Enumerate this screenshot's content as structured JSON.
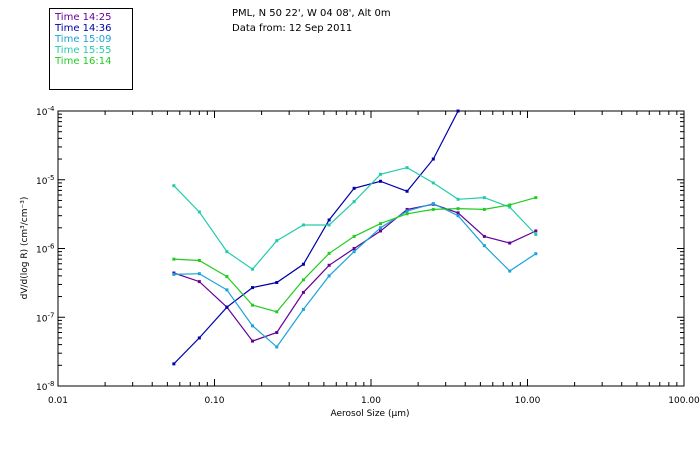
{
  "header": {
    "title": "PML, N 50 22', W 04 08', Alt 0m",
    "subtitle": "Data from: 12 Sep 2011"
  },
  "chart_data": {
    "type": "line",
    "xlabel": "Aerosol Size (µm)",
    "ylabel": "dV/d(log R) (cm³/cm⁻³)",
    "xscale": "log",
    "yscale": "log",
    "xlim": [
      0.01,
      100
    ],
    "ylim": [
      1e-08,
      0.0001
    ],
    "x_tick_labels": [
      "0.01",
      "0.10",
      "1.00",
      "10.00",
      "100.00"
    ],
    "y_tick_labels": [
      {
        "base": "10",
        "exp": "-8"
      },
      {
        "base": "10",
        "exp": "-7"
      },
      {
        "base": "10",
        "exp": "-6"
      },
      {
        "base": "10",
        "exp": "-5"
      },
      {
        "base": "10",
        "exp": "-4"
      }
    ],
    "legend_position": "top-left, outside plot",
    "series": [
      {
        "name": "Time 14:25",
        "color": "#660099",
        "x": [
          0.055,
          0.08,
          0.12,
          0.175,
          0.25,
          0.37,
          0.54,
          0.78,
          1.15,
          1.7,
          2.5,
          3.6,
          5.3,
          7.7,
          11.3
        ],
        "y": [
          4.4e-07,
          3.3e-07,
          1.4e-07,
          4.5e-08,
          6e-08,
          2.3e-07,
          5.7e-07,
          1e-06,
          1.8e-06,
          3.7e-06,
          4.4e-06,
          3.3e-06,
          1.5e-06,
          1.2e-06,
          1.8e-06
        ]
      },
      {
        "name": "Time 14:36",
        "color": "#0000aa",
        "x": [
          0.055,
          0.08,
          0.12,
          0.175,
          0.25,
          0.37,
          0.54,
          0.78,
          1.15,
          1.7,
          2.5,
          3.6
        ],
        "y": [
          2.1e-08,
          5e-08,
          1.4e-07,
          2.7e-07,
          3.2e-07,
          5.9e-07,
          2.6e-06,
          7.5e-06,
          9.5e-06,
          6.8e-06,
          2e-05,
          0.0001
        ]
      },
      {
        "name": "Time 15:09",
        "color": "#1aa3d9",
        "x": [
          0.055,
          0.08,
          0.12,
          0.175,
          0.25,
          0.37,
          0.54,
          0.78,
          1.15,
          1.7,
          2.5,
          3.6,
          5.3,
          7.7,
          11.3
        ],
        "y": [
          4.2e-07,
          4.3e-07,
          2.5e-07,
          7.5e-08,
          3.7e-08,
          1.3e-07,
          4e-07,
          9e-07,
          2e-06,
          3.5e-06,
          4.5e-06,
          3e-06,
          1.1e-06,
          4.7e-07,
          8.4e-07
        ]
      },
      {
        "name": "Time 15:55",
        "color": "#22ccaa",
        "x": [
          0.055,
          0.08,
          0.12,
          0.175,
          0.25,
          0.37,
          0.54,
          0.78,
          1.15,
          1.7,
          2.5,
          3.6,
          5.3,
          7.7,
          11.3
        ],
        "y": [
          8.2e-06,
          3.4e-06,
          9e-07,
          5e-07,
          1.3e-06,
          2.2e-06,
          2.2e-06,
          4.8e-06,
          1.2e-05,
          1.5e-05,
          9e-06,
          5.2e-06,
          5.5e-06,
          4e-06,
          1.6e-06
        ]
      },
      {
        "name": "Time 16:14",
        "color": "#22cc22",
        "x": [
          0.055,
          0.08,
          0.12,
          0.175,
          0.25,
          0.37,
          0.54,
          0.78,
          1.15,
          1.7,
          2.5,
          3.6,
          5.3,
          7.7,
          11.3
        ],
        "y": [
          7e-07,
          6.7e-07,
          3.9e-07,
          1.5e-07,
          1.2e-07,
          3.5e-07,
          8.5e-07,
          1.5e-06,
          2.3e-06,
          3.2e-06,
          3.7e-06,
          3.8e-06,
          3.7e-06,
          4.3e-06,
          5.5e-06
        ]
      }
    ]
  }
}
